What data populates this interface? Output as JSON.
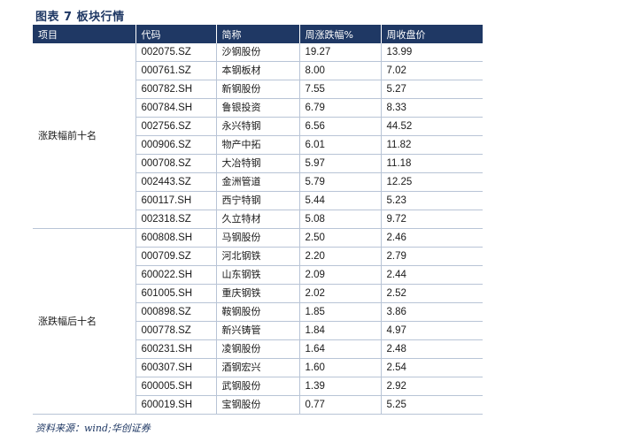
{
  "title": "图表 7 板块行情",
  "source": "资料来源：wind;华创证券",
  "headers": [
    "项目",
    "代码",
    "简称",
    "周涨跌幅%",
    "周收盘价"
  ],
  "groups": [
    {
      "label": "涨跌幅前十名",
      "rows": [
        {
          "code": "002075.SZ",
          "name": "沙钢股份",
          "change": "19.27",
          "close": "13.99"
        },
        {
          "code": "000761.SZ",
          "name": "本钢板材",
          "change": "8.00",
          "close": "7.02"
        },
        {
          "code": "600782.SH",
          "name": "新钢股份",
          "change": "7.55",
          "close": "5.27"
        },
        {
          "code": "600784.SH",
          "name": "鲁银投资",
          "change": "6.79",
          "close": "8.33"
        },
        {
          "code": "002756.SZ",
          "name": "永兴特钢",
          "change": "6.56",
          "close": "44.52"
        },
        {
          "code": "000906.SZ",
          "name": "物产中拓",
          "change": "6.01",
          "close": "11.82"
        },
        {
          "code": "000708.SZ",
          "name": "大冶特钢",
          "change": "5.97",
          "close": "11.18"
        },
        {
          "code": "002443.SZ",
          "name": "金洲管道",
          "change": "5.79",
          "close": "12.25"
        },
        {
          "code": "600117.SH",
          "name": "西宁特钢",
          "change": "5.44",
          "close": "5.23"
        },
        {
          "code": "002318.SZ",
          "name": "久立特材",
          "change": "5.08",
          "close": "9.72"
        }
      ]
    },
    {
      "label": "涨跌幅后十名",
      "rows": [
        {
          "code": "600808.SH",
          "name": "马钢股份",
          "change": "2.50",
          "close": "2.46"
        },
        {
          "code": "000709.SZ",
          "name": "河北钢铁",
          "change": "2.20",
          "close": "2.79"
        },
        {
          "code": "600022.SH",
          "name": "山东钢铁",
          "change": "2.09",
          "close": "2.44"
        },
        {
          "code": "601005.SH",
          "name": "重庆钢铁",
          "change": "2.02",
          "close": "2.52"
        },
        {
          "code": "000898.SZ",
          "name": "鞍钢股份",
          "change": "1.85",
          "close": "3.86"
        },
        {
          "code": "000778.SZ",
          "name": "新兴铸管",
          "change": "1.84",
          "close": "4.97"
        },
        {
          "code": "600231.SH",
          "name": "凌钢股份",
          "change": "1.64",
          "close": "2.48"
        },
        {
          "code": "600307.SH",
          "name": "酒钢宏兴",
          "change": "1.60",
          "close": "2.54"
        },
        {
          "code": "600005.SH",
          "name": "武钢股份",
          "change": "1.39",
          "close": "2.92"
        },
        {
          "code": "600019.SH",
          "name": "宝钢股份",
          "change": "0.77",
          "close": "5.25"
        }
      ]
    }
  ]
}
